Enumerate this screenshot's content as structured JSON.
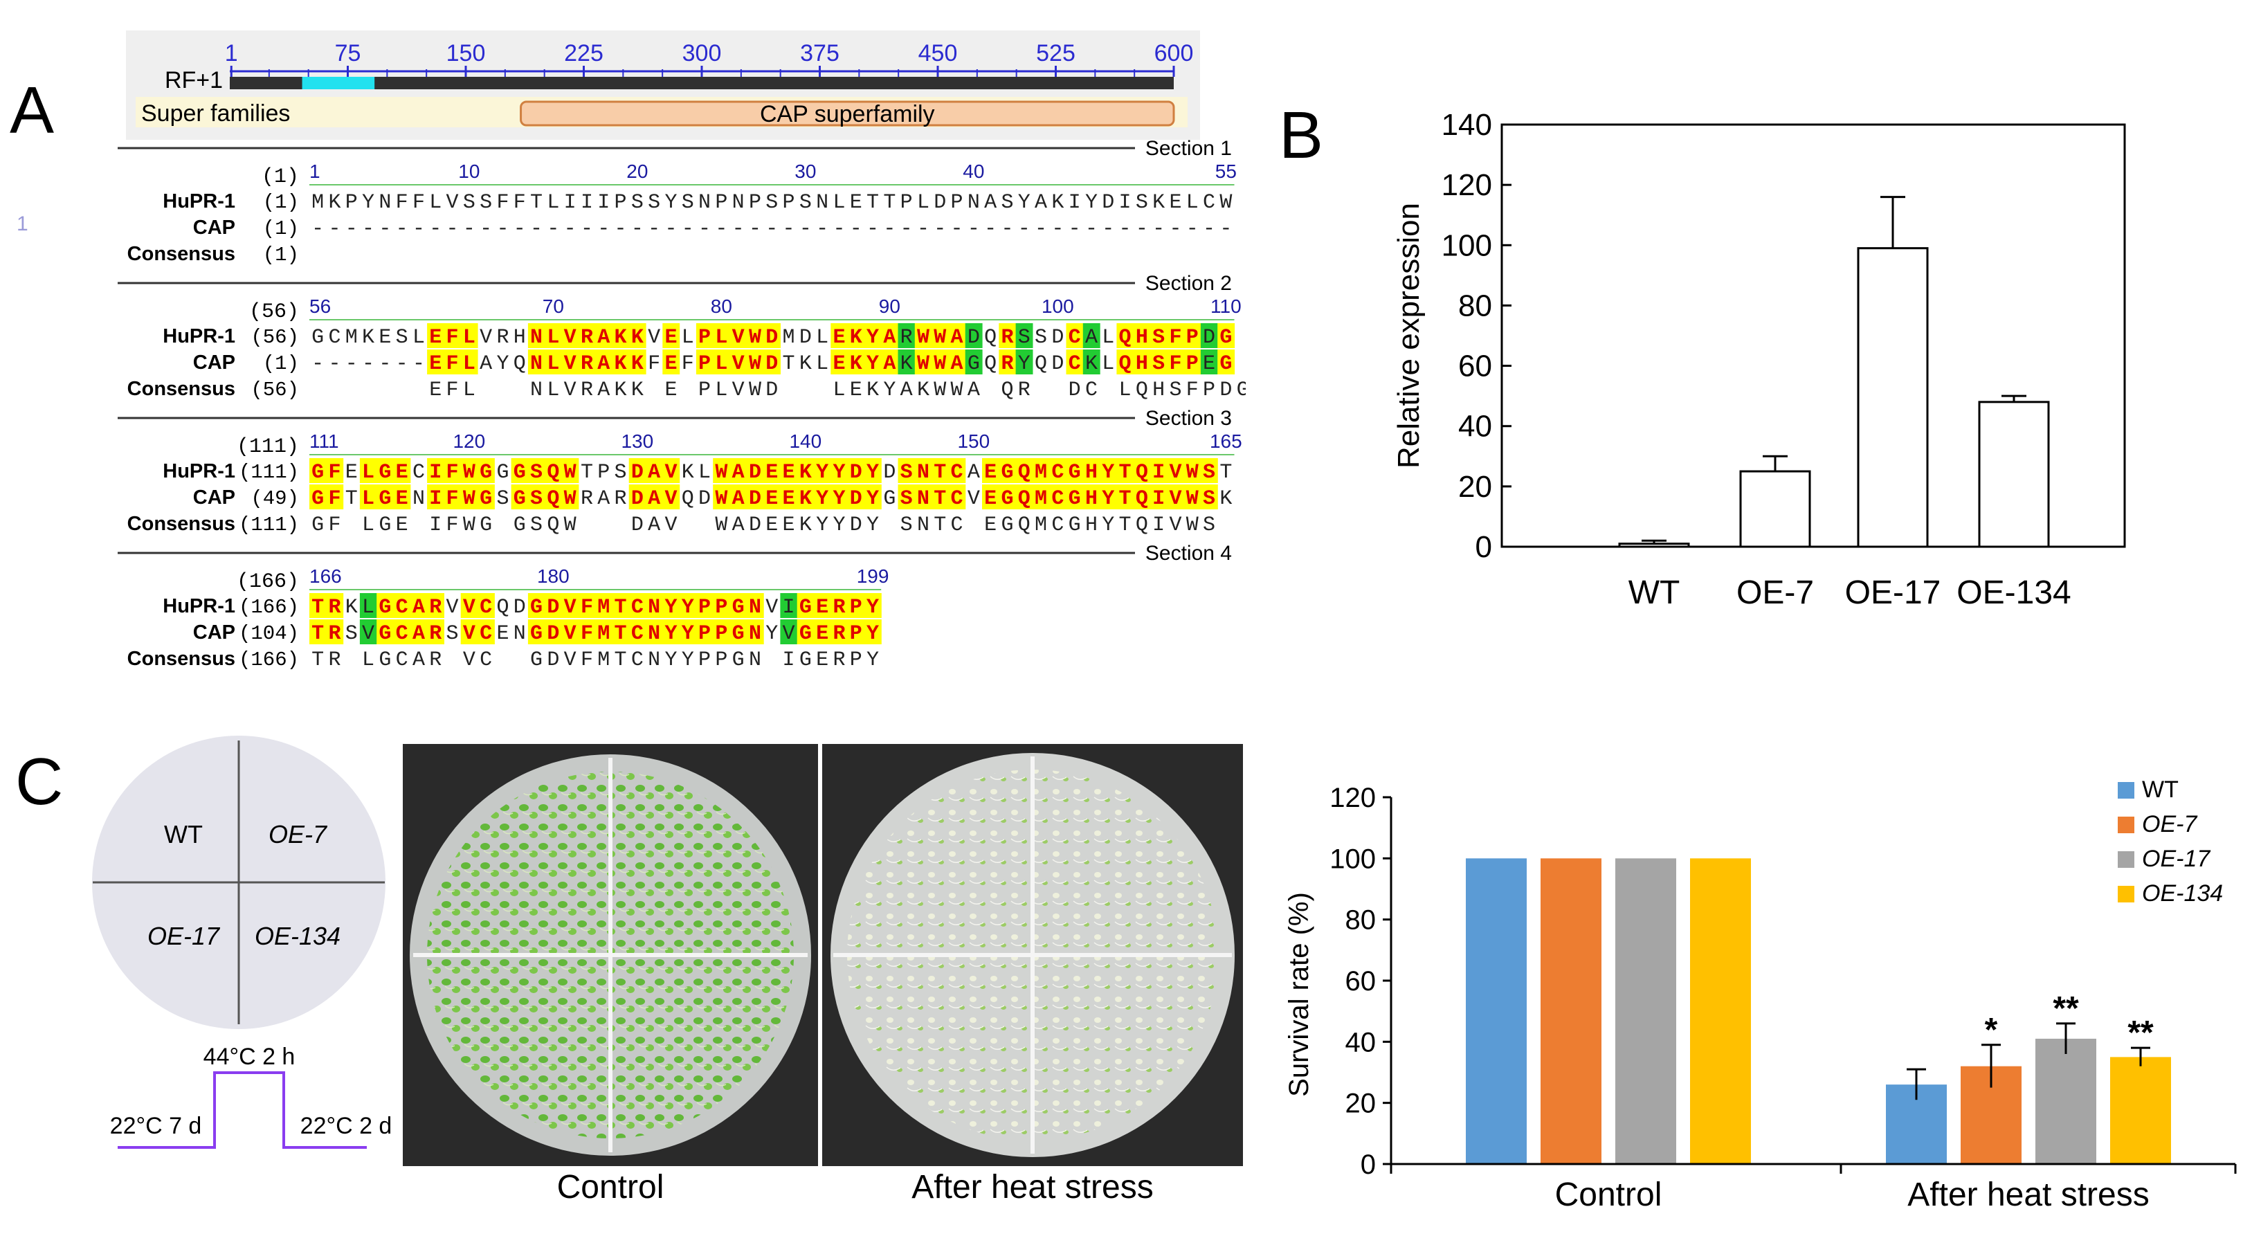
{
  "panels": {
    "a": "A",
    "b": "B",
    "c": "C"
  },
  "domain_map": {
    "track_label": "RF+1",
    "ticks": [
      "1",
      "75",
      "150",
      "225",
      "300",
      "375",
      "450",
      "525",
      "600"
    ],
    "tick_values": [
      1,
      75,
      150,
      225,
      300,
      375,
      450,
      525,
      600
    ],
    "superfamilies_label": "Super families",
    "cap_label": "CAP superfamily",
    "cap_range": [
      185,
      600
    ],
    "cyan_range": [
      46,
      92
    ],
    "track_length": 600,
    "stray_mark": "1"
  },
  "alignment": {
    "sections": [
      {
        "title": "Section 1",
        "pos_label": "(1)",
        "ruler": [
          {
            "n": "1",
            "col": 0
          },
          {
            "n": "10",
            "col": 9
          },
          {
            "n": "20",
            "col": 19
          },
          {
            "n": "30",
            "col": 29
          },
          {
            "n": "40",
            "col": 39
          },
          {
            "n": "55",
            "col": 54
          }
        ],
        "rows": [
          {
            "name": "HuPR-1",
            "pos": "(1)",
            "seq": "MKPYNFFLVSSFFTLIIIPSSYSNPNPSPSNLETTPLDPNASYAKIYDISKELCW"
          },
          {
            "name": "CAP",
            "pos": "(1)",
            "seq": "-------------------------------------------------------"
          },
          {
            "name": "Consensus",
            "pos": "(1)",
            "seq": ""
          }
        ]
      },
      {
        "title": "Section 2",
        "pos_label": "(56)",
        "ruler": [
          {
            "n": "56",
            "col": 0
          },
          {
            "n": "70",
            "col": 14
          },
          {
            "n": "80",
            "col": 24
          },
          {
            "n": "90",
            "col": 34
          },
          {
            "n": "100",
            "col": 44
          },
          {
            "n": "110",
            "col": 54
          }
        ],
        "rows": [
          {
            "name": "HuPR-1",
            "pos": "(56)",
            "seq": "GCMKESLEFLVRHNLVRAKKVELPLVWDMDLEKYARWWADQRSSDCALQHSFPDG"
          },
          {
            "name": "CAP",
            "pos": "(1)",
            "seq": "-------EFLAYQNLVRAKKFEFPLVWDTKLEKYAKWWAGQRYQDCKLQHSFPEG"
          },
          {
            "name": "Consensus",
            "pos": "(56)",
            "seq": "       EFL   NLVRAKK E PLVWD   LEKYAKWWA QR  DC LQHSFPDG"
          }
        ]
      },
      {
        "title": "Section 3",
        "pos_label": "(111)",
        "ruler": [
          {
            "n": "111",
            "col": 0
          },
          {
            "n": "120",
            "col": 9
          },
          {
            "n": "130",
            "col": 19
          },
          {
            "n": "140",
            "col": 29
          },
          {
            "n": "150",
            "col": 39
          },
          {
            "n": "165",
            "col": 54
          }
        ],
        "rows": [
          {
            "name": "HuPR-1",
            "pos": "(111)",
            "seq": "GFELGECIFWGGGSQWTPSDAVKLWADEEKYYDYDSNTCAEGQMCGHYTQIVWST"
          },
          {
            "name": "CAP",
            "pos": "(49)",
            "seq": "GFTLGENIFWGSGSQWRARDAVQDWADEEKYYDYGSNTCVEGQMCGHYTQIVWSK"
          },
          {
            "name": "Consensus",
            "pos": "(111)",
            "seq": "GF LGE IFWG GSQW   DAV  WADEEKYYDY SNTC EGQMCGHYTQIVWS"
          }
        ]
      },
      {
        "title": "Section 4",
        "pos_label": "(166)",
        "ruler": [
          {
            "n": "166",
            "col": 0
          },
          {
            "n": "180",
            "col": 14
          },
          {
            "n": "199",
            "col": 33
          }
        ],
        "rows": [
          {
            "name": "HuPR-1",
            "pos": "(166)",
            "seq": "TRKLGCARVVCQDGDVFMTCNYYPPGNVIGERPY"
          },
          {
            "name": "CAP",
            "pos": "(104)",
            "seq": "TRSVGCARSVCENGDVFMTCNYYPPGNYVGERPY"
          },
          {
            "name": "Consensus",
            "pos": "(166)",
            "seq": "TR LGCAR VC  GDVFMTCNYYPPGN IGERPY"
          }
        ]
      }
    ],
    "colors": {
      "identical_bg": "#ffff00",
      "identical_fg": "#e00000",
      "similar_bg": "#22cc33",
      "ruler": "#1a1aa0",
      "normal_fg": "#222222"
    }
  },
  "chart_b": {
    "type": "bar",
    "categories": [
      "WT",
      "OE-7",
      "OE-17",
      "OE-134"
    ],
    "values": [
      1,
      25,
      99,
      48
    ],
    "errors": [
      1,
      5,
      17,
      2
    ],
    "ylabel": "Relative expression",
    "ylim": [
      0,
      140
    ],
    "yticks": [
      "0",
      "20",
      "40",
      "60",
      "80",
      "100",
      "120",
      "140"
    ],
    "ytick_values": [
      0,
      20,
      40,
      60,
      80,
      100,
      120,
      140
    ]
  },
  "panel_c": {
    "diagram": {
      "quadrants": [
        "WT",
        "OE-7",
        "OE-17",
        "OE-134"
      ],
      "temp_high": "44°C 2 h",
      "temp_before": "22°C 7 d",
      "temp_after": "22°C 2 d"
    },
    "photo_captions": [
      "Control",
      "After heat stress"
    ],
    "chart": {
      "type": "bar",
      "categories": [
        "Control",
        "After heat stress"
      ],
      "series": [
        {
          "name": "WT",
          "color": "#5b9bd5",
          "values": [
            100,
            26
          ],
          "errors": [
            0,
            5
          ],
          "sig": [
            "",
            ""
          ]
        },
        {
          "name": "OE-7",
          "color": "#ed7d31",
          "values": [
            100,
            32
          ],
          "errors": [
            0,
            7
          ],
          "sig": [
            "",
            "*"
          ]
        },
        {
          "name": "OE-17",
          "color": "#a5a5a5",
          "values": [
            100,
            41
          ],
          "errors": [
            0,
            5
          ],
          "sig": [
            "",
            "**"
          ]
        },
        {
          "name": "OE-134",
          "color": "#ffc000",
          "values": [
            100,
            35
          ],
          "errors": [
            0,
            3
          ],
          "sig": [
            "",
            "**"
          ]
        }
      ],
      "ylabel": "Survival rate (%)",
      "ylim": [
        0,
        120
      ],
      "yticks": [
        "0",
        "20",
        "40",
        "60",
        "80",
        "100",
        "120"
      ],
      "ytick_values": [
        0,
        20,
        40,
        60,
        80,
        100,
        120
      ],
      "legend_position": "top-right"
    }
  },
  "chart_data": [
    {
      "type": "bar",
      "title": "",
      "categories": [
        "WT",
        "OE-7",
        "OE-17",
        "OE-134"
      ],
      "values": [
        1,
        25,
        99,
        48
      ],
      "errors": [
        1,
        5,
        17,
        2
      ],
      "xlabel": "",
      "ylabel": "Relative expression",
      "ylim": [
        0,
        140
      ]
    },
    {
      "type": "bar",
      "title": "",
      "categories": [
        "Control",
        "After heat stress"
      ],
      "series": [
        {
          "name": "WT",
          "values": [
            100,
            26
          ]
        },
        {
          "name": "OE-7",
          "values": [
            100,
            32
          ]
        },
        {
          "name": "OE-17",
          "values": [
            100,
            41
          ]
        },
        {
          "name": "OE-134",
          "values": [
            100,
            35
          ]
        }
      ],
      "xlabel": "",
      "ylabel": "Survival rate (%)",
      "ylim": [
        0,
        120
      ],
      "legend": "top-right"
    }
  ]
}
